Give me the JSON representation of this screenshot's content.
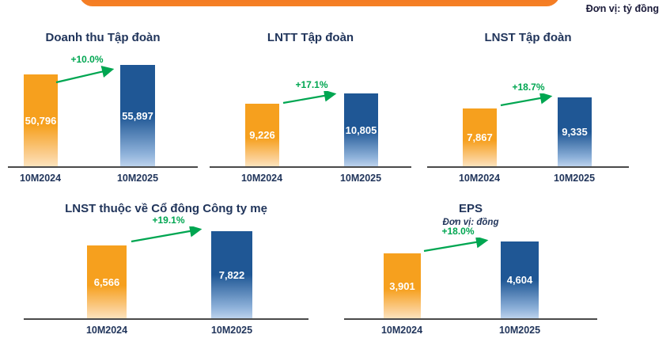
{
  "header": {
    "unit_note": "Đơn vị: tỷ đồng"
  },
  "theme": {
    "bar_2024_orange": "#F6A01E",
    "bar_2025_blue": "#1F5795",
    "growth_green": "#00A651",
    "title_navy": "#21355B",
    "header_pill_orange": "#F26F21"
  },
  "chart_data": [
    {
      "type": "bar",
      "title": "Doanh thu Tập đoàn",
      "categories": [
        "10M2024",
        "10M2025"
      ],
      "values": [
        50796,
        55897
      ],
      "value_labels": [
        "50,796",
        "55,897"
      ],
      "growth_label": "+10.0%",
      "unit": "tỷ đồng",
      "legend_position": "none",
      "grid": false
    },
    {
      "type": "bar",
      "title": "LNTT Tập đoàn",
      "categories": [
        "10M2024",
        "10M2025"
      ],
      "values": [
        9226,
        10805
      ],
      "value_labels": [
        "9,226",
        "10,805"
      ],
      "growth_label": "+17.1%",
      "unit": "tỷ đồng",
      "legend_position": "none",
      "grid": false
    },
    {
      "type": "bar",
      "title": "LNST Tập đoàn",
      "categories": [
        "10M2024",
        "10M2025"
      ],
      "values": [
        7867,
        9335
      ],
      "value_labels": [
        "7,867",
        "9,335"
      ],
      "growth_label": "+18.7%",
      "unit": "tỷ đồng",
      "legend_position": "none",
      "grid": false
    },
    {
      "type": "bar",
      "title": "LNST thuộc về Cổ đông Công ty mẹ",
      "categories": [
        "10M2024",
        "10M2025"
      ],
      "values": [
        6566,
        7822
      ],
      "value_labels": [
        "6,566",
        "7,822"
      ],
      "growth_label": "+19.1%",
      "unit": "tỷ đồng",
      "legend_position": "none",
      "grid": false
    },
    {
      "type": "bar",
      "title": "EPS",
      "subtitle": "Đơn vị: đồng",
      "categories": [
        "10M2024",
        "10M2025"
      ],
      "values": [
        3901,
        4604
      ],
      "value_labels": [
        "3,901",
        "4,604"
      ],
      "growth_label": "+18.0%",
      "unit": "đồng",
      "legend_position": "none",
      "grid": false
    }
  ]
}
